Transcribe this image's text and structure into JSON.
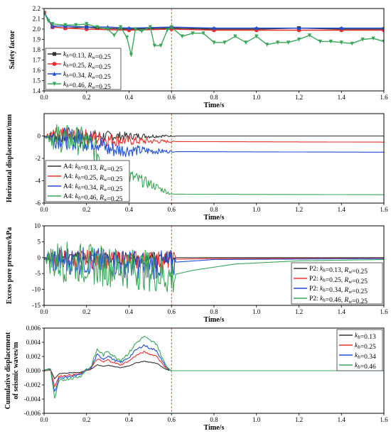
{
  "chart_data": [
    {
      "id": "safety",
      "type": "line",
      "ylabel": "Safety factor",
      "xlabel": "Time/s",
      "xlim": [
        0,
        1.6
      ],
      "ylim": [
        1.4,
        2.2
      ],
      "xticks": [
        "0.0",
        "0.2",
        "0.4",
        "0.6",
        "0.8",
        "1.0",
        "1.2",
        "1.4",
        "1.6"
      ],
      "yticks": [
        "1.4",
        "1.5",
        "1.6",
        "1.7",
        "1.8",
        "1.9",
        "2.0",
        "2.1",
        "2.2"
      ],
      "legend_position": "bottom-left",
      "series": [
        {
          "name": "k_h=0.13, R_w=0.25",
          "color": "#333333",
          "marker": "square",
          "points": [
            [
              0,
              2.16
            ],
            [
              0.04,
              2.02
            ],
            [
              0.1,
              2.01
            ],
            [
              0.2,
              2.02
            ],
            [
              0.25,
              2.01
            ],
            [
              0.4,
              2.0
            ],
            [
              0.6,
              2.01
            ],
            [
              0.8,
              2.0
            ],
            [
              1.0,
              2.0
            ],
            [
              1.2,
              2.01
            ],
            [
              1.4,
              2.0
            ],
            [
              1.6,
              2.0
            ]
          ]
        },
        {
          "name": "k_h=0.25, R_w=0.25",
          "color": "#e8302a",
          "marker": "circle",
          "points": [
            [
              0,
              2.16
            ],
            [
              0.04,
              2.02
            ],
            [
              0.1,
              2.01
            ],
            [
              0.2,
              2.0
            ],
            [
              0.4,
              1.99
            ],
            [
              0.6,
              2.0
            ],
            [
              0.8,
              1.99
            ],
            [
              1.0,
              1.99
            ],
            [
              1.2,
              1.99
            ],
            [
              1.4,
              1.99
            ],
            [
              1.6,
              1.99
            ]
          ]
        },
        {
          "name": "k_h=0.34, R_w=0.25",
          "color": "#1f4ed8",
          "marker": "triangle-up",
          "points": [
            [
              0,
              2.16
            ],
            [
              0.04,
              2.03
            ],
            [
              0.1,
              2.03
            ],
            [
              0.2,
              2.02
            ],
            [
              0.3,
              2.02
            ],
            [
              0.4,
              2.01
            ],
            [
              0.6,
              2.02
            ],
            [
              0.8,
              2.01
            ],
            [
              1.0,
              2.01
            ],
            [
              1.2,
              2.01
            ],
            [
              1.4,
              2.01
            ],
            [
              1.6,
              2.01
            ]
          ]
        },
        {
          "name": "k_h=0.46, R_w=0.25",
          "color": "#3aa75a",
          "marker": "triangle-down",
          "points": [
            [
              0,
              2.16
            ],
            [
              0.02,
              2.08
            ],
            [
              0.04,
              2.05
            ],
            [
              0.1,
              2.04
            ],
            [
              0.15,
              2.04
            ],
            [
              0.2,
              2.05
            ],
            [
              0.25,
              2.02
            ],
            [
              0.3,
              2.0
            ],
            [
              0.33,
              1.94
            ],
            [
              0.36,
              2.02
            ],
            [
              0.39,
              1.92
            ],
            [
              0.41,
              1.75
            ],
            [
              0.43,
              2.0
            ],
            [
              0.46,
              1.98
            ],
            [
              0.5,
              2.02
            ],
            [
              0.52,
              1.84
            ],
            [
              0.55,
              1.84
            ],
            [
              0.58,
              1.99
            ],
            [
              0.6,
              2.02
            ],
            [
              0.65,
              1.93
            ],
            [
              0.7,
              1.96
            ],
            [
              0.75,
              1.96
            ],
            [
              0.8,
              1.87
            ],
            [
              0.85,
              1.87
            ],
            [
              0.9,
              1.93
            ],
            [
              0.95,
              1.87
            ],
            [
              1.0,
              1.93
            ],
            [
              1.05,
              1.85
            ],
            [
              1.1,
              1.87
            ],
            [
              1.15,
              1.87
            ],
            [
              1.2,
              1.9
            ],
            [
              1.25,
              1.94
            ],
            [
              1.3,
              1.88
            ],
            [
              1.35,
              1.88
            ],
            [
              1.4,
              1.87
            ],
            [
              1.45,
              1.86
            ],
            [
              1.5,
              1.9
            ],
            [
              1.55,
              1.91
            ],
            [
              1.6,
              1.88
            ]
          ]
        }
      ]
    },
    {
      "id": "horizontal",
      "type": "line",
      "ylabel": "Horizontal displacement/mm",
      "xlabel": "Time/s",
      "xlim": [
        0,
        1.6
      ],
      "ylim": [
        -6,
        2
      ],
      "xticks": [
        "0.0",
        "0.2",
        "0.4",
        "0.6",
        "0.8",
        "1.0",
        "1.2",
        "1.4",
        "1.6"
      ],
      "yticks": [
        "-6",
        "-4",
        "-2",
        "0"
      ],
      "legend_position": "bottom-left",
      "series": [
        {
          "name": "A4: k_h=0.13,  R_w=0.25",
          "color": "#333333",
          "amp": 0.6,
          "start": 0,
          "trend": [
            [
              0,
              0
            ],
            [
              0.3,
              0
            ],
            [
              0.6,
              0
            ],
            [
              1.6,
              0
            ]
          ]
        },
        {
          "name": "A4: k_h=0.25,  R_w=0.25",
          "color": "#e8302a",
          "amp": 0.8,
          "start": 0,
          "trend": [
            [
              0,
              0
            ],
            [
              0.25,
              -0.2
            ],
            [
              0.35,
              -0.4
            ],
            [
              0.6,
              -0.5
            ],
            [
              1.6,
              -0.55
            ]
          ]
        },
        {
          "name": "A4: k_h=0.34,  R_w=0.25",
          "color": "#1f4ed8",
          "amp": 1.0,
          "start": 0,
          "trend": [
            [
              0,
              0
            ],
            [
              0.25,
              -0.5
            ],
            [
              0.3,
              -1.2
            ],
            [
              0.6,
              -1.4
            ],
            [
              1.6,
              -1.45
            ]
          ]
        },
        {
          "name": "A4: k_h=0.46,  R_w=0.25",
          "color": "#3aa75a",
          "amp": 1.3,
          "start": 0,
          "trend": [
            [
              0,
              0
            ],
            [
              0.2,
              -0.5
            ],
            [
              0.25,
              -1.5
            ],
            [
              0.3,
              -2.6
            ],
            [
              0.4,
              -3.6
            ],
            [
              0.5,
              -4.3
            ],
            [
              0.58,
              -5.0
            ],
            [
              0.6,
              -5.2
            ],
            [
              1.6,
              -5.25
            ]
          ]
        }
      ]
    },
    {
      "id": "pore",
      "type": "line",
      "ylabel": "Excess pore pressure/kPa",
      "xlabel": "Time/s",
      "xlim": [
        0,
        1.6
      ],
      "ylim": [
        -15,
        10
      ],
      "xticks": [
        "0.0",
        "0.2",
        "0.4",
        "0.6",
        "0.8",
        "1.0",
        "1.2",
        "1.4",
        "1.6"
      ],
      "yticks": [
        "-15",
        "-10",
        "-5",
        "0",
        "5",
        "10"
      ],
      "legend_position": "bottom-right",
      "series": [
        {
          "name": "P2: k_h=0.13,  R_w=0.25",
          "color": "#333333",
          "amp": 2.0,
          "trend": [
            [
              0,
              0
            ],
            [
              0.6,
              0
            ],
            [
              0.7,
              0
            ],
            [
              1.6,
              0
            ]
          ]
        },
        {
          "name": "P2: k_h=0.25,  R_w=0.25",
          "color": "#e8302a",
          "amp": 3.0,
          "trend": [
            [
              0,
              0
            ],
            [
              0.4,
              -0.5
            ],
            [
              0.6,
              -0.5
            ],
            [
              0.8,
              -0.3
            ],
            [
              1.6,
              -0.2
            ]
          ]
        },
        {
          "name": "P2: k_h=0.34,  R_w=0.25",
          "color": "#1f4ed8",
          "amp": 4.5,
          "trend": [
            [
              0,
              0
            ],
            [
              0.3,
              -1
            ],
            [
              0.5,
              -2
            ],
            [
              0.6,
              -1.5
            ],
            [
              0.8,
              -0.6
            ],
            [
              1.6,
              -0.3
            ]
          ]
        },
        {
          "name": "P2: k_h=0.46,  R_w=0.25",
          "color": "#3aa75a",
          "amp": 6.5,
          "trend": [
            [
              0,
              0
            ],
            [
              0.3,
              -2
            ],
            [
              0.5,
              -3.5
            ],
            [
              0.6,
              -5.5
            ],
            [
              0.7,
              -4
            ],
            [
              0.9,
              -2
            ],
            [
              1.2,
              -1
            ],
            [
              1.6,
              -0.6
            ]
          ]
        }
      ]
    },
    {
      "id": "cumulative",
      "type": "line",
      "ylabel": "Cumulative displacement of seismic waves/m",
      "xlabel": "Time/s",
      "xlim": [
        0,
        1.6
      ],
      "ylim": [
        -0.006,
        0.006
      ],
      "xticks": [
        "0.0",
        "0.2",
        "0.4",
        "0.6",
        "0.8",
        "1.0",
        "1.2",
        "1.4",
        "1.6"
      ],
      "yticks": [
        "-0.006",
        "-0.004",
        "-0.002",
        "0.000",
        "0.002",
        "0.004",
        "0.006"
      ],
      "legend_position": "top-right",
      "series": [
        {
          "name": "k_h=0.13",
          "color": "#333333",
          "scale": 0.28
        },
        {
          "name": "k_h=0.25",
          "color": "#e8302a",
          "scale": 0.55
        },
        {
          "name": "k_h=0.34",
          "color": "#1f4ed8",
          "scale": 0.75
        },
        {
          "name": "k_h=0.46",
          "color": "#3aa75a",
          "scale": 1.0
        }
      ],
      "base_shape": [
        [
          0,
          0
        ],
        [
          0.03,
          0.0003
        ],
        [
          0.05,
          -0.004
        ],
        [
          0.07,
          -0.0015
        ],
        [
          0.1,
          -0.0012
        ],
        [
          0.14,
          -0.001
        ],
        [
          0.17,
          -0.0008
        ],
        [
          0.2,
          0.0002
        ],
        [
          0.22,
          0.0005
        ],
        [
          0.25,
          0.003
        ],
        [
          0.28,
          0.0022
        ],
        [
          0.3,
          0.0028
        ],
        [
          0.33,
          0.002
        ],
        [
          0.36,
          0.0015
        ],
        [
          0.4,
          0.0025
        ],
        [
          0.43,
          0.0038
        ],
        [
          0.47,
          0.0048
        ],
        [
          0.5,
          0.0042
        ],
        [
          0.53,
          0.0038
        ],
        [
          0.56,
          0.0015
        ],
        [
          0.58,
          0.0005
        ],
        [
          0.6,
          0
        ],
        [
          1.6,
          0
        ]
      ]
    }
  ],
  "reference_line": {
    "x": 0.6,
    "color": "#e8302a"
  }
}
